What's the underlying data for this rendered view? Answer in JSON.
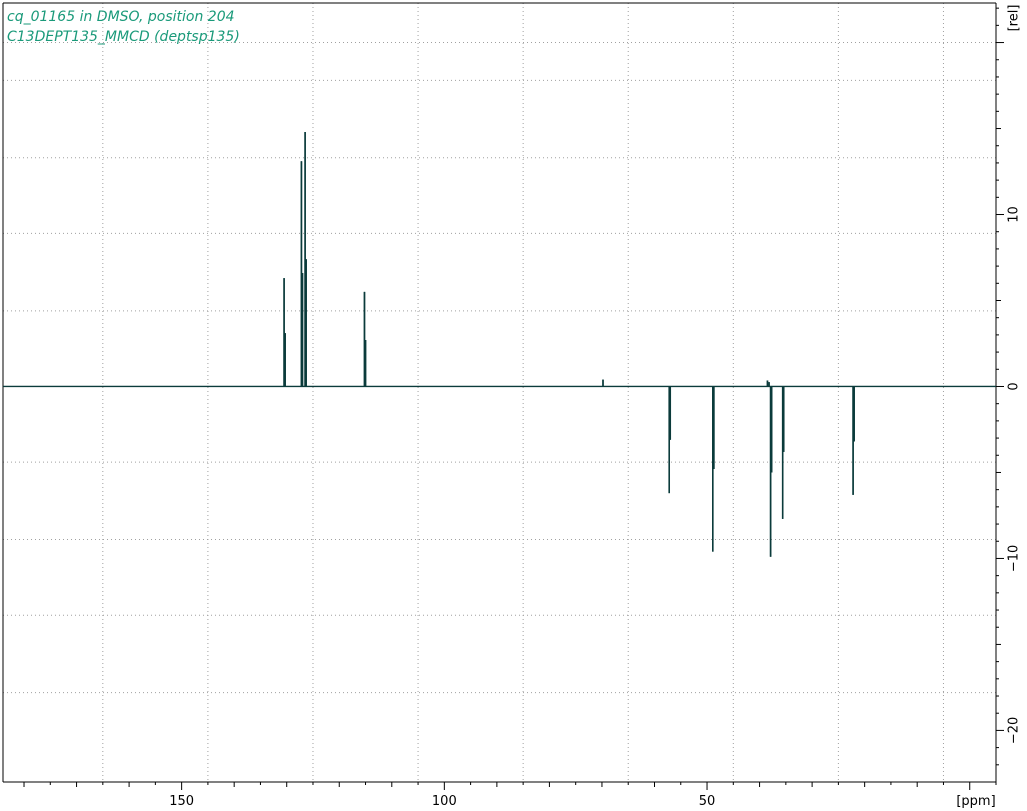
{
  "chart_data": {
    "type": "line",
    "title_lines": [
      "cq_01165 in DMSO, position 204",
      "C13DEPT135_MMCD (deptsp135)"
    ],
    "xlabel": "[ppm]",
    "ylabel": "[rel]",
    "xlim": [
      184,
      -5
    ],
    "ylim": [
      -23,
      22.3
    ],
    "x_ticks": [
      150,
      100,
      50
    ],
    "y_ticks": [
      10,
      0,
      -10,
      -20
    ],
    "x_tick_labels": [
      "150",
      "100",
      "50"
    ],
    "y_tick_labels": [
      "10",
      "0",
      "−10",
      "−20"
    ],
    "grid": true,
    "x_gridlines": [
      165,
      145,
      125,
      105,
      85,
      65,
      45,
      25,
      5
    ],
    "y_gridlines": [
      20,
      17.8,
      13.3,
      8.9,
      4.4,
      -4.4,
      -8.9,
      -13.3,
      -17.8
    ],
    "line_color": "#0b3b3b",
    "title_color": "#1a9a7a",
    "series": [
      {
        "peaks": [
          {
            "ppm": 130.5,
            "intensity": 6.3
          },
          {
            "ppm": 130.3,
            "intensity": 3.1
          },
          {
            "ppm": 127.2,
            "intensity": 13.1
          },
          {
            "ppm": 127.0,
            "intensity": 6.6
          },
          {
            "ppm": 126.5,
            "intensity": 14.8
          },
          {
            "ppm": 126.3,
            "intensity": 7.4
          },
          {
            "ppm": 115.2,
            "intensity": 5.5
          },
          {
            "ppm": 115.0,
            "intensity": 2.7
          },
          {
            "ppm": 69.8,
            "intensity": 0.4
          },
          {
            "ppm": 38.5,
            "intensity": 0.35
          },
          {
            "ppm": 38.2,
            "intensity": 0.25
          },
          {
            "ppm": 57.2,
            "intensity": -6.2
          },
          {
            "ppm": 57.0,
            "intensity": -3.1
          },
          {
            "ppm": 48.9,
            "intensity": -9.6
          },
          {
            "ppm": 48.7,
            "intensity": -4.8
          },
          {
            "ppm": 37.9,
            "intensity": -9.9
          },
          {
            "ppm": 37.7,
            "intensity": -5.0
          },
          {
            "ppm": 35.6,
            "intensity": -7.7
          },
          {
            "ppm": 35.4,
            "intensity": -3.8
          },
          {
            "ppm": 22.2,
            "intensity": -6.3
          },
          {
            "ppm": 22.0,
            "intensity": -3.2
          }
        ]
      }
    ]
  }
}
